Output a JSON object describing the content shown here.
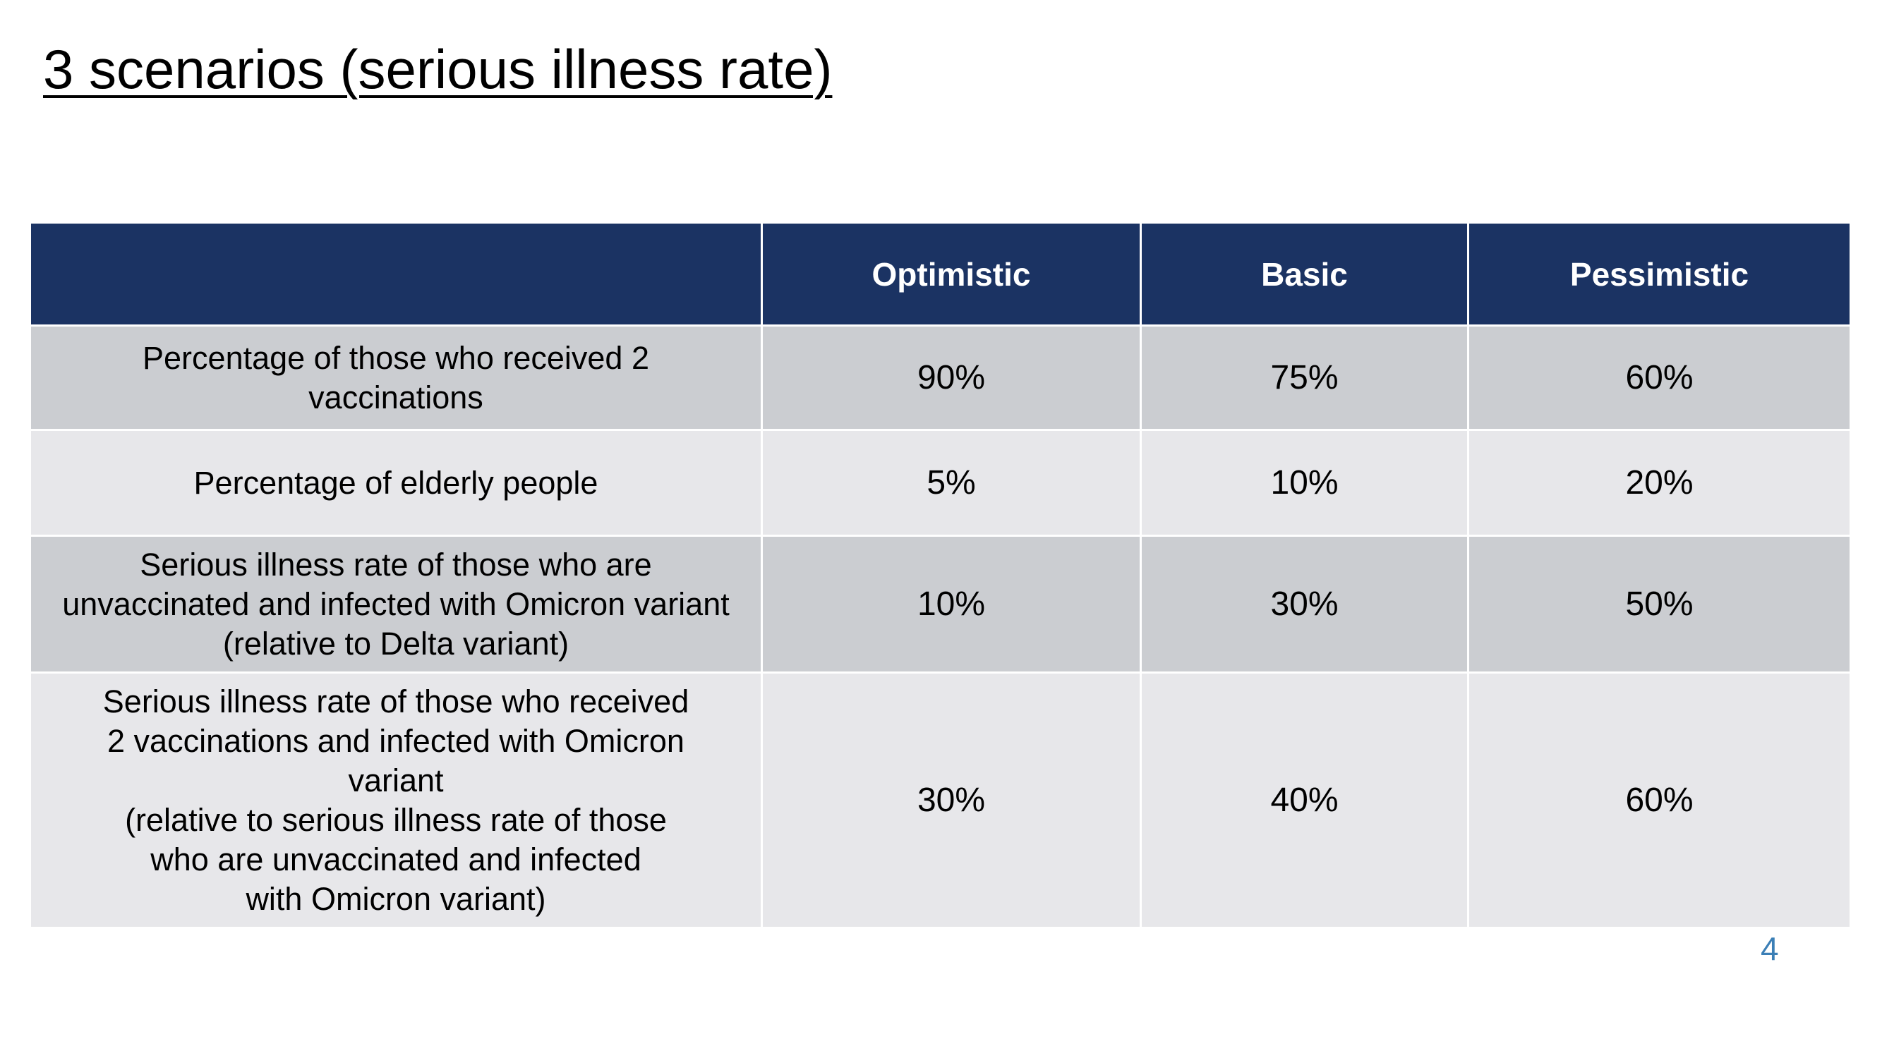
{
  "title": "3 scenarios (serious illness rate)",
  "table": {
    "columns": [
      "",
      "Optimistic",
      "Basic",
      "Pessimistic"
    ],
    "rows": [
      {
        "label_lines": [
          "Percentage of those who received 2",
          "vaccinations"
        ],
        "values": [
          "90%",
          "75%",
          "60%"
        ]
      },
      {
        "label_lines": [
          "Percentage of elderly people"
        ],
        "values": [
          "5%",
          "10%",
          "20%"
        ]
      },
      {
        "label_lines": [
          "Serious illness rate of those who are",
          "unvaccinated and infected with Omicron variant",
          "(relative to Delta variant)"
        ],
        "values": [
          "10%",
          "30%",
          "50%"
        ]
      },
      {
        "label_lines": [
          "Serious illness rate of those who received",
          "2 vaccinations and infected with Omicron",
          "variant",
          "(relative to serious illness rate of those",
          "who are unvaccinated and infected",
          "with Omicron variant)"
        ],
        "values": [
          "30%",
          "40%",
          "60%"
        ]
      }
    ]
  },
  "page_number": "4",
  "colors": {
    "header_bg": "#1b3363",
    "row_dark_bg": "#cbcdd1",
    "row_light_bg": "#e7e7ea",
    "page_number": "#3b7fb6"
  }
}
